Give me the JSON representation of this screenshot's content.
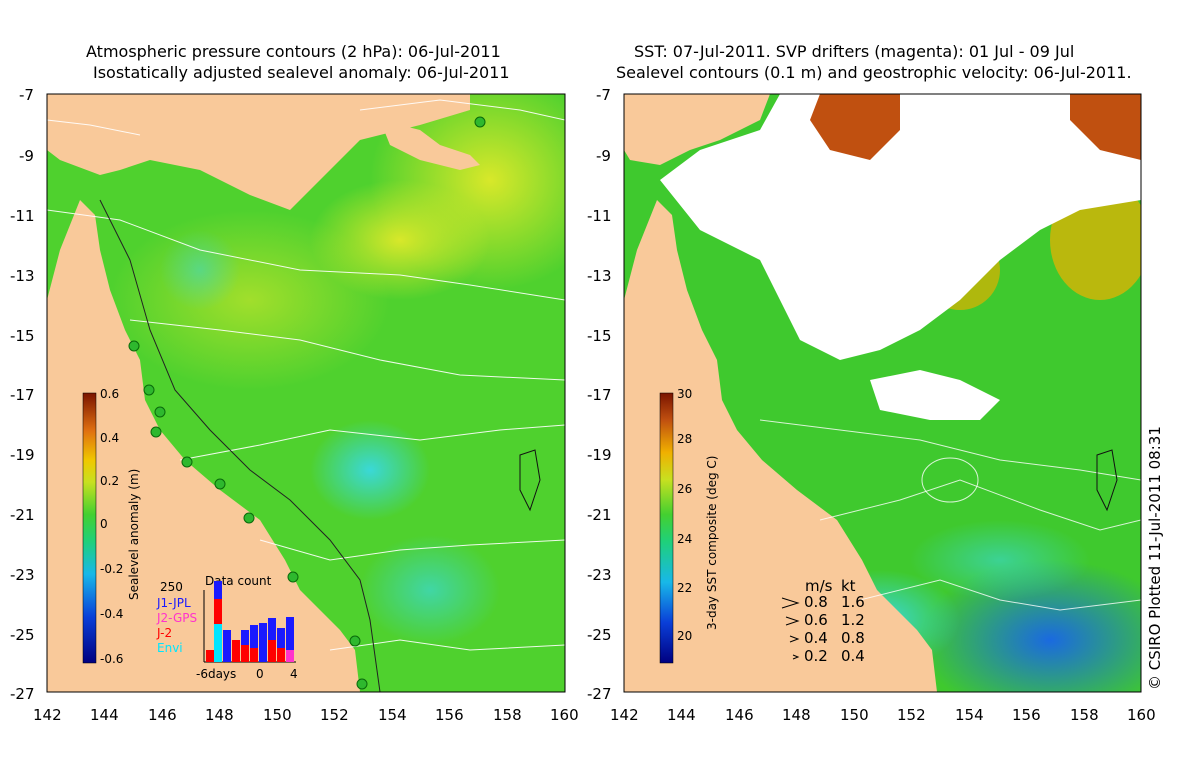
{
  "left_panel": {
    "title_line1": "Atmospheric pressure contours (2 hPa): 06-Jul-2011",
    "title_line2": "Isostatically adjusted sealevel anomaly: 06-Jul-2011",
    "colorbar_label": "Sealevel anomaly (m)",
    "colorbar_ticks": [
      "0.6",
      "0.4",
      "0.2",
      "0",
      "-0.2",
      "-0.4",
      "-0.6"
    ],
    "datacount": {
      "title": "Data count",
      "max_label": "250",
      "legend": [
        {
          "name": "J1-JPL",
          "color": "#1a1aff"
        },
        {
          "name": "J2-GPS",
          "color": "#ff33cc"
        },
        {
          "name": "J-2",
          "color": "#ff0000"
        },
        {
          "name": "Envi",
          "color": "#00e5ff"
        }
      ],
      "x_labels": [
        "-6days",
        "0",
        "4"
      ]
    }
  },
  "right_panel": {
    "title_line1": "SST: 07-Jul-2011. SVP drifters (magenta): 01 Jul - 09 Jul",
    "title_line2": "Sealevel contours (0.1 m) and geostrophic velocity: 06-Jul-2011.",
    "colorbar_label": "3-day SST composite (deg C)",
    "colorbar_ticks": [
      "30",
      "28",
      "26",
      "24",
      "22",
      "20"
    ],
    "velocity_legend": {
      "header_ms": "m/s",
      "header_kt": "kt",
      "rows": [
        {
          "ms": "0.8",
          "kt": "1.6"
        },
        {
          "ms": "0.6",
          "kt": "1.2"
        },
        {
          "ms": "0.4",
          "kt": "0.8"
        },
        {
          "ms": "0.2",
          "kt": "0.4"
        }
      ]
    }
  },
  "axes": {
    "y_ticks": [
      "-7",
      "-9",
      "-11",
      "-13",
      "-15",
      "-17",
      "-19",
      "-21",
      "-23",
      "-25",
      "-27"
    ],
    "x_ticks": [
      "142",
      "144",
      "146",
      "148",
      "150",
      "152",
      "154",
      "156",
      "158",
      "160"
    ]
  },
  "copyright": "© CSIRO Plotted 11-Jul-2011 08:31",
  "colors": {
    "land": "#f9c99a",
    "ocean_green": "#4fd12e",
    "ocean_light": "#8fe03a",
    "ocean_teal": "#1fc07a",
    "ocean_cyan": "#2ad6c8",
    "sst_blue": "#1f6fe0",
    "sst_orange": "#e08a1a"
  }
}
